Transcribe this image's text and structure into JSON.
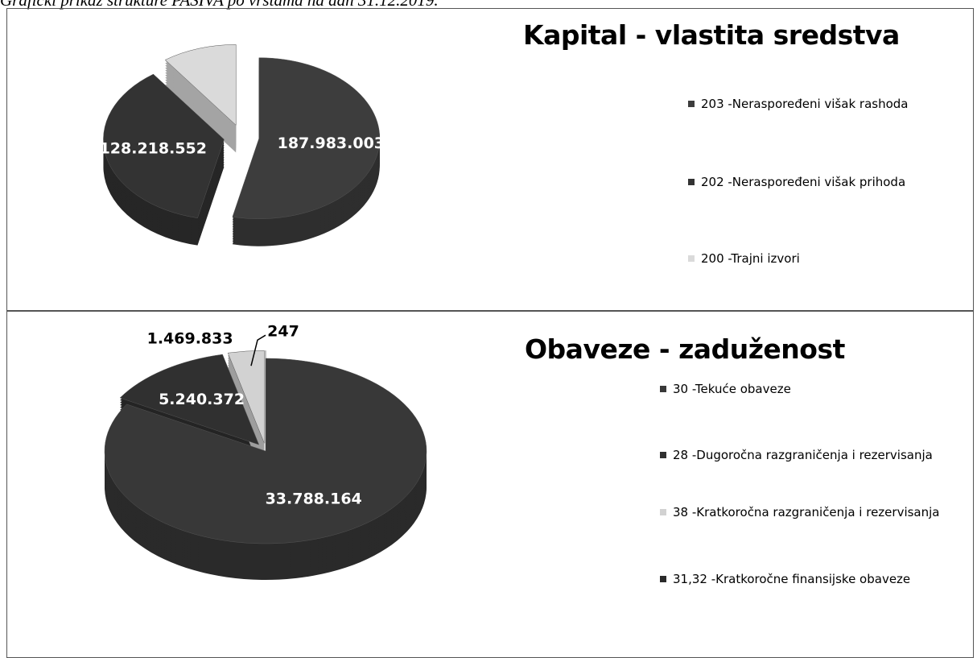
{
  "caption": "Grafički prikaz strukture PASIVA po vrstama na dan 31.12.2019.",
  "chart_data": [
    {
      "type": "pie",
      "title": "Kapital - vlastita sredstva",
      "categories": [
        "203 -Neraspoređeni višak rashoda",
        "202 -Neraspoređeni višak prihoda",
        "200 -Trajni izvori"
      ],
      "values": [
        187983003,
        128218552,
        35000000
      ],
      "value_labels": [
        "187.983.003",
        "128.218.552",
        null
      ],
      "colors": [
        "#3d3d3d",
        "#333333",
        "#dadada"
      ]
    },
    {
      "type": "pie",
      "title": "Obaveze - zaduženost",
      "categories": [
        "30 -Tekuće obaveze",
        "28 -Dugoročna razgraničenja i rezervisanja",
        "38 -Kratkoročna razgraničenja i rezervisanja",
        "31,32 -Kratkoročne finansijske obaveze"
      ],
      "values": [
        33788164,
        5240372,
        1469833,
        247
      ],
      "value_labels": [
        "33.788.164",
        "5.240.372",
        "1.469.833",
        "247"
      ],
      "colors": [
        "#383838",
        "#303030",
        "#d2d2d2",
        "#2a2a2a"
      ]
    }
  ]
}
